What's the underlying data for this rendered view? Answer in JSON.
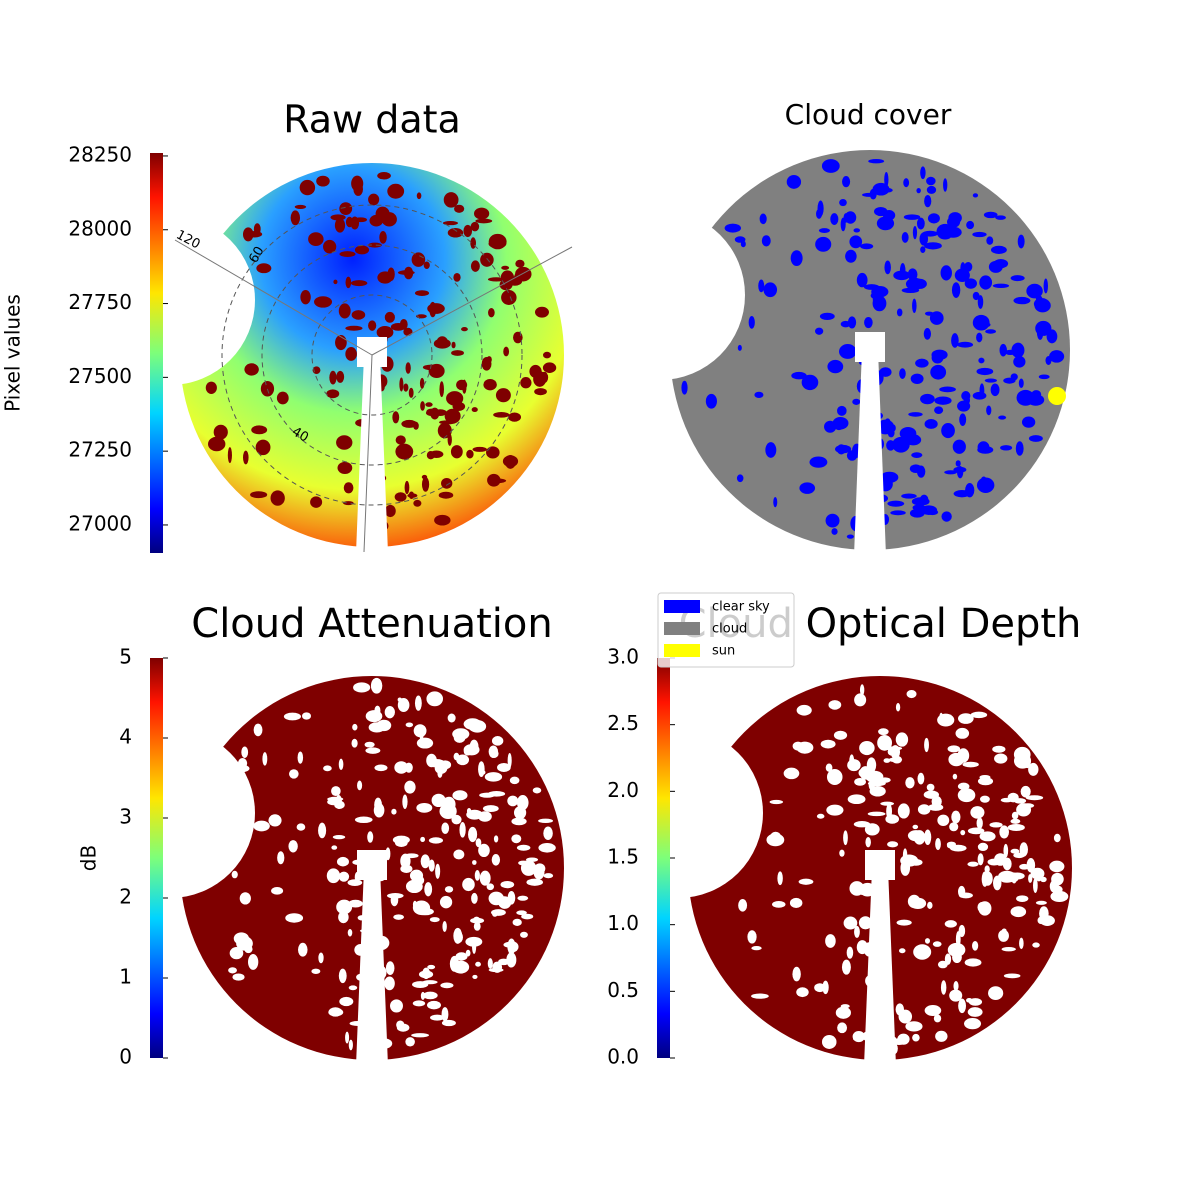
{
  "chart_data": [
    {
      "type": "image",
      "title": "Raw data",
      "colormap": "jet",
      "colorbar_label": "Pixel values",
      "clim": [
        26905,
        28260
      ],
      "cticks": [
        27000,
        27250,
        27500,
        27750,
        28000,
        28250
      ],
      "annotations": [
        "120",
        "60",
        "40"
      ]
    },
    {
      "type": "classification",
      "title": "Cloud cover",
      "legend": [
        {
          "name": "clear sky",
          "color": "#0000ff"
        },
        {
          "name": "cloud",
          "color": "#808080"
        },
        {
          "name": "sun",
          "color": "#ffff00"
        }
      ]
    },
    {
      "type": "image",
      "title": "Cloud Attenuation",
      "colormap": "jet",
      "colorbar_label": "dB",
      "clim": [
        0,
        5
      ],
      "cticks": [
        0,
        1,
        2,
        3,
        4,
        5
      ]
    },
    {
      "type": "image",
      "title": "Cloud Optical Depth",
      "colormap": "jet",
      "clim": [
        0,
        3
      ],
      "cticks": [
        {
          "value": 0,
          "label": "0.0"
        },
        0.5,
        {
          "value": 1,
          "label": "1.0"
        },
        1.5,
        {
          "value": 2,
          "label": "2.0"
        },
        2.5,
        {
          "value": 3,
          "label": "3.0"
        }
      ]
    }
  ]
}
